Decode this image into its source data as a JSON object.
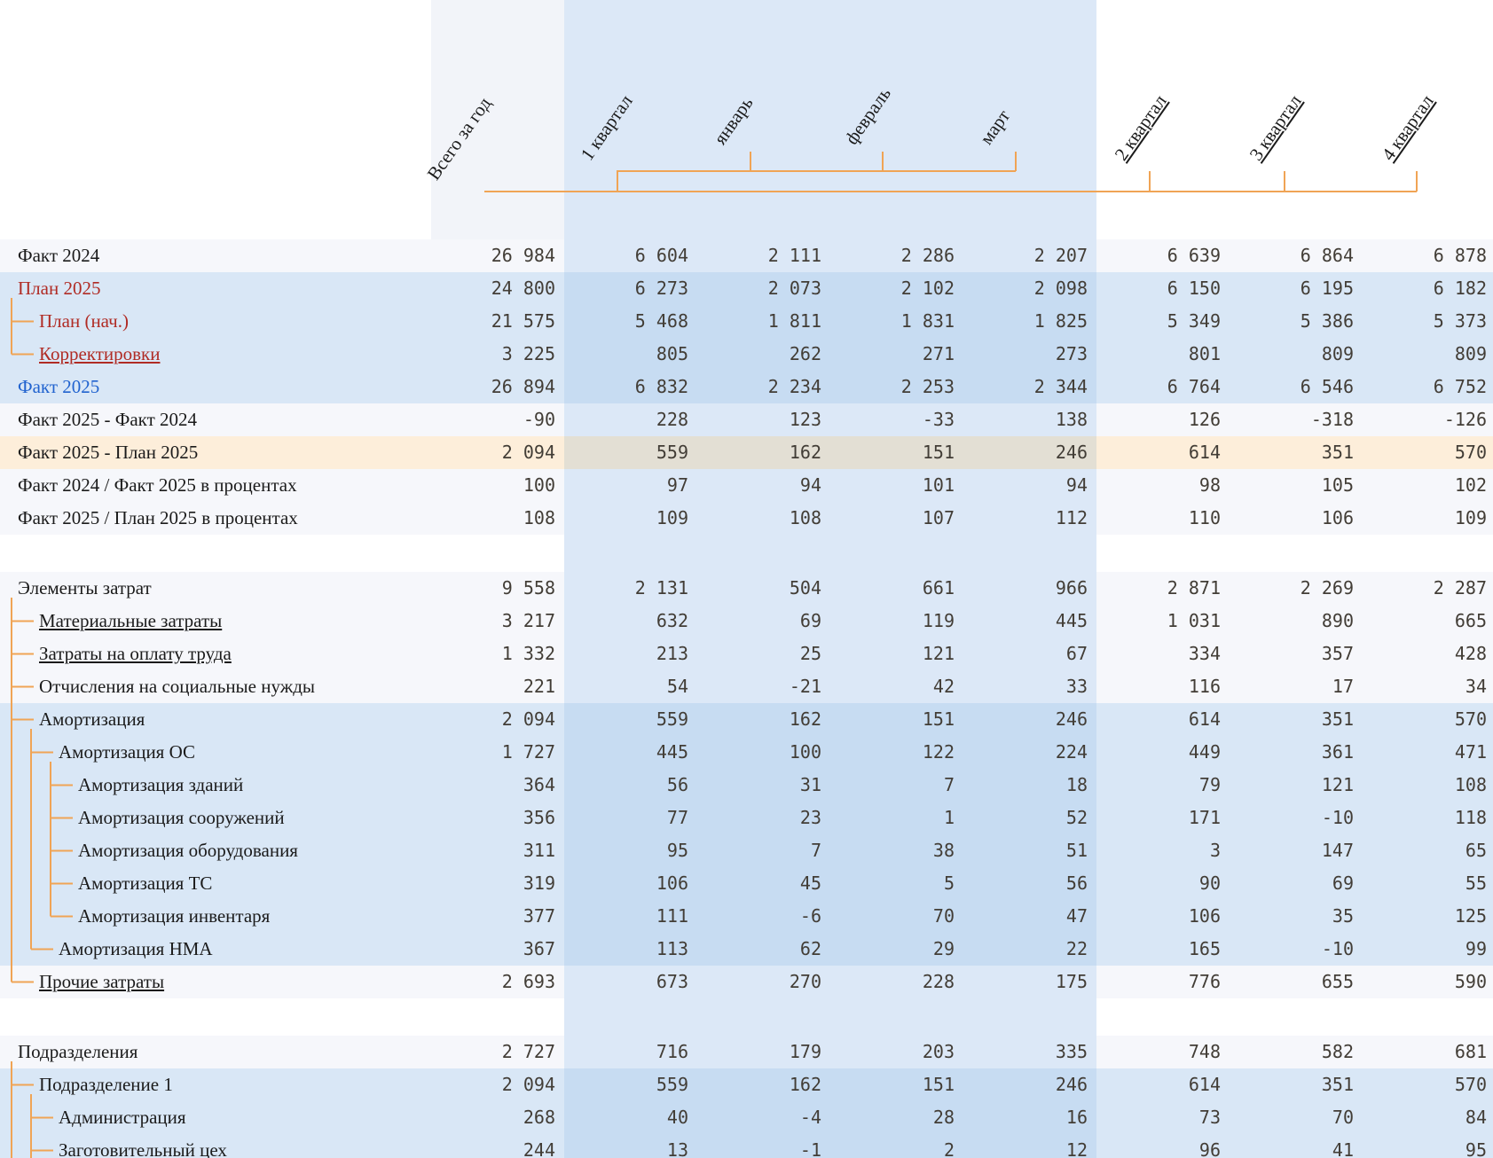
{
  "header": {
    "columns": [
      {
        "label": "Всего за год",
        "underlined": false
      },
      {
        "label": "1 квартал",
        "underlined": false
      },
      {
        "label": "январь",
        "underlined": false
      },
      {
        "label": "февраль",
        "underlined": false
      },
      {
        "label": "март",
        "underlined": false
      },
      {
        "label": "2 квартал",
        "underlined": true
      },
      {
        "label": "3 квартал",
        "underlined": true
      },
      {
        "label": "4 квартал",
        "underlined": true
      }
    ]
  },
  "colors": {
    "connector_orange": "#f0a455",
    "plan_red": "#b02b24",
    "fact_blue": "#2163cf",
    "band_blue": "#dce8f7",
    "row_highlight_blue": "#d9e7f6",
    "row_highlight_cream": "#fdeeda",
    "number_text": "#423d36"
  },
  "rows": [
    {
      "label": "Факт 2024",
      "level": 0,
      "text_color": "black",
      "underlined": false,
      "row_bg": "normal",
      "values": [
        "26 984",
        "6 604",
        "2 111",
        "2 286",
        "2 207",
        "6 639",
        "6 864",
        "6 878"
      ]
    },
    {
      "label": "План 2025",
      "level": 0,
      "text_color": "red",
      "underlined": false,
      "row_bg": "blue",
      "values": [
        "24 800",
        "6 273",
        "2 073",
        "2 102",
        "2 098",
        "6 150",
        "6 195",
        "6 182"
      ]
    },
    {
      "label": "План (нач.)",
      "level": 1,
      "text_color": "red",
      "underlined": false,
      "row_bg": "blue",
      "values": [
        "21 575",
        "5 468",
        "1 811",
        "1 831",
        "1 825",
        "5 349",
        "5 386",
        "5 373"
      ]
    },
    {
      "label": "Корректировки",
      "level": 1,
      "text_color": "red",
      "underlined": true,
      "row_bg": "blue",
      "values": [
        "3 225",
        "805",
        "262",
        "271",
        "273",
        "801",
        "809",
        "809"
      ]
    },
    {
      "label": "Факт 2025",
      "level": 0,
      "text_color": "blue",
      "underlined": false,
      "row_bg": "blue",
      "values": [
        "26 894",
        "6 832",
        "2 234",
        "2 253",
        "2 344",
        "6 764",
        "6 546",
        "6 752"
      ]
    },
    {
      "label": "Факт 2025 - Факт 2024",
      "level": 0,
      "text_color": "black",
      "underlined": false,
      "row_bg": "normal",
      "values": [
        "-90",
        "228",
        "123",
        "-33",
        "138",
        "126",
        "-318",
        "-126"
      ]
    },
    {
      "label": "Факт 2025 - План 2025",
      "level": 0,
      "text_color": "black",
      "underlined": false,
      "row_bg": "cream",
      "values": [
        "2 094",
        "559",
        "162",
        "151",
        "246",
        "614",
        "351",
        "570"
      ]
    },
    {
      "label": "Факт 2024 / Факт 2025 в процентах",
      "level": 0,
      "text_color": "black",
      "underlined": false,
      "row_bg": "normal",
      "values": [
        "100",
        "97",
        "94",
        "101",
        "94",
        "98",
        "105",
        "102"
      ]
    },
    {
      "label": "Факт 2025 / План 2025 в процентах",
      "level": 0,
      "text_color": "black",
      "underlined": false,
      "row_bg": "normal",
      "values": [
        "108",
        "109",
        "108",
        "107",
        "112",
        "110",
        "106",
        "109"
      ]
    },
    {
      "type": "gap"
    },
    {
      "label": "Элементы затрат",
      "level": 0,
      "text_color": "black",
      "underlined": false,
      "row_bg": "normal",
      "values": [
        "9 558",
        "2 131",
        "504",
        "661",
        "966",
        "2 871",
        "2 269",
        "2 287"
      ]
    },
    {
      "label": "Материальные затраты",
      "level": 1,
      "text_color": "black",
      "underlined": true,
      "row_bg": "normal",
      "values": [
        "3 217",
        "632",
        "69",
        "119",
        "445",
        "1 031",
        "890",
        "665"
      ]
    },
    {
      "label": "Затраты на оплату труда",
      "level": 1,
      "text_color": "black",
      "underlined": true,
      "row_bg": "normal",
      "values": [
        "1 332",
        "213",
        "25",
        "121",
        "67",
        "334",
        "357",
        "428"
      ]
    },
    {
      "label": "Отчисления на социальные нужды",
      "level": 1,
      "text_color": "black",
      "underlined": false,
      "row_bg": "normal",
      "values": [
        "221",
        "54",
        "-21",
        "42",
        "33",
        "116",
        "17",
        "34"
      ]
    },
    {
      "label": "Амортизация",
      "level": 1,
      "text_color": "black",
      "underlined": false,
      "row_bg": "blue",
      "values": [
        "2 094",
        "559",
        "162",
        "151",
        "246",
        "614",
        "351",
        "570"
      ]
    },
    {
      "label": "Амортизация ОС",
      "level": 2,
      "text_color": "black",
      "underlined": false,
      "row_bg": "blue",
      "values": [
        "1 727",
        "445",
        "100",
        "122",
        "224",
        "449",
        "361",
        "471"
      ]
    },
    {
      "label": "Амортизация зданий",
      "level": 3,
      "text_color": "black",
      "underlined": false,
      "row_bg": "blue",
      "values": [
        "364",
        "56",
        "31",
        "7",
        "18",
        "79",
        "121",
        "108"
      ]
    },
    {
      "label": "Амортизация сооружений",
      "level": 3,
      "text_color": "black",
      "underlined": false,
      "row_bg": "blue",
      "values": [
        "356",
        "77",
        "23",
        "1",
        "52",
        "171",
        "-10",
        "118"
      ]
    },
    {
      "label": "Амортизация оборудования",
      "level": 3,
      "text_color": "black",
      "underlined": false,
      "row_bg": "blue",
      "values": [
        "311",
        "95",
        "7",
        "38",
        "51",
        "3",
        "147",
        "65"
      ]
    },
    {
      "label": "Амортизация ТС",
      "level": 3,
      "text_color": "black",
      "underlined": false,
      "row_bg": "blue",
      "values": [
        "319",
        "106",
        "45",
        "5",
        "56",
        "90",
        "69",
        "55"
      ]
    },
    {
      "label": "Амортизация инвентаря",
      "level": 3,
      "text_color": "black",
      "underlined": false,
      "row_bg": "blue",
      "values": [
        "377",
        "111",
        "-6",
        "70",
        "47",
        "106",
        "35",
        "125"
      ]
    },
    {
      "label": "Амортизация НМА",
      "level": 2,
      "text_color": "black",
      "underlined": false,
      "row_bg": "blue",
      "values": [
        "367",
        "113",
        "62",
        "29",
        "22",
        "165",
        "-10",
        "99"
      ]
    },
    {
      "label": "Прочие затраты",
      "level": 1,
      "text_color": "black",
      "underlined": true,
      "row_bg": "normal",
      "values": [
        "2 693",
        "673",
        "270",
        "228",
        "175",
        "776",
        "655",
        "590"
      ]
    },
    {
      "type": "gap"
    },
    {
      "label": "Подразделения",
      "level": 0,
      "text_color": "black",
      "underlined": false,
      "row_bg": "normal",
      "values": [
        "2 727",
        "716",
        "179",
        "203",
        "335",
        "748",
        "582",
        "681"
      ]
    },
    {
      "label": "Подразделение 1",
      "level": 1,
      "text_color": "black",
      "underlined": false,
      "row_bg": "blue",
      "values": [
        "2 094",
        "559",
        "162",
        "151",
        "246",
        "614",
        "351",
        "570"
      ]
    },
    {
      "label": "Администрация",
      "level": 2,
      "text_color": "black",
      "underlined": false,
      "row_bg": "blue",
      "values": [
        "268",
        "40",
        "-4",
        "28",
        "16",
        "73",
        "70",
        "84"
      ]
    },
    {
      "label": "Заготовительный цех",
      "level": 2,
      "text_color": "black",
      "underlined": false,
      "row_bg": "blue",
      "values": [
        "244",
        "13",
        "-1",
        "2",
        "12",
        "96",
        "41",
        "95"
      ]
    }
  ]
}
